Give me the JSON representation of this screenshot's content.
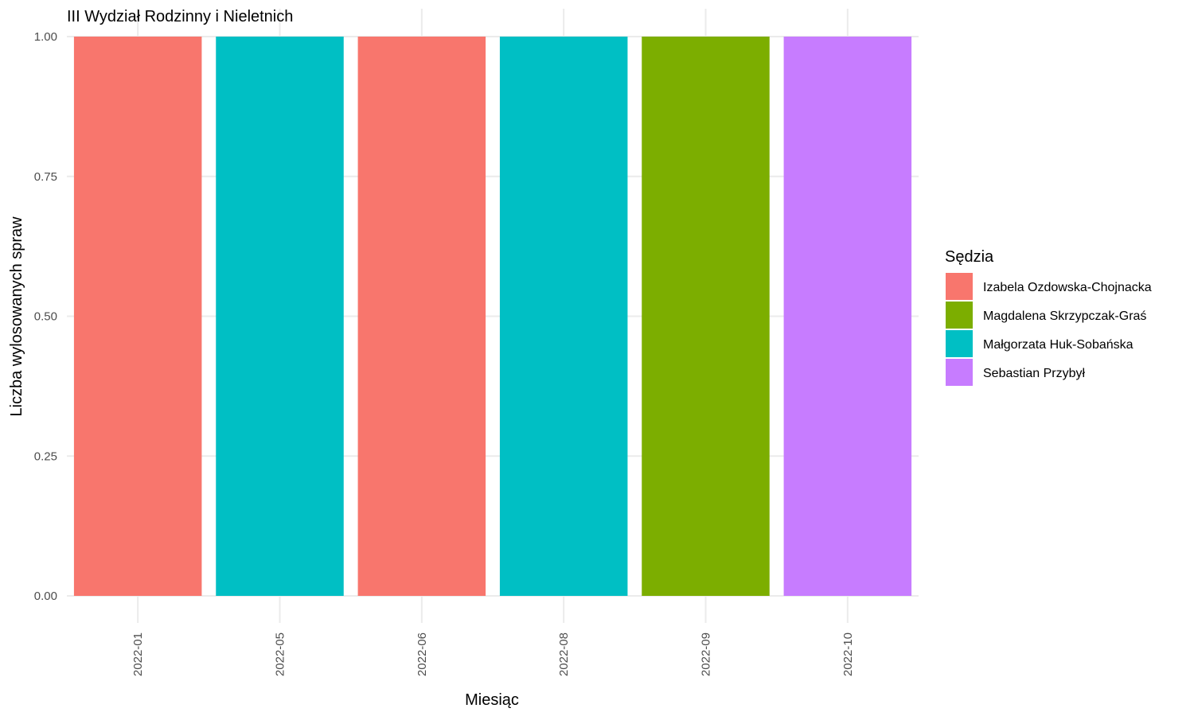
{
  "chart_data": {
    "type": "bar",
    "title": "III Wydział Rodzinny i Nieletnich",
    "xlabel": "Miesiąc",
    "ylabel": "Liczba wylosowanych spraw",
    "categories": [
      "2022-01",
      "2022-05",
      "2022-06",
      "2022-08",
      "2022-09",
      "2022-10"
    ],
    "values": [
      1,
      1,
      1,
      1,
      1,
      1
    ],
    "bar_judges": [
      "Izabela Ozdowska-Chojnacka",
      "Małgorzata Huk-Sobańska",
      "Izabela Ozdowska-Chojnacka",
      "Małgorzata Huk-Sobańska",
      "Magdalena Skrzypczak-Graś",
      "Sebastian Przybył"
    ],
    "ylim": [
      0,
      1
    ],
    "yticks": [
      0,
      0.25,
      0.5,
      0.75,
      1
    ],
    "ytick_labels": [
      "0.00",
      "0.25",
      "0.50",
      "0.75",
      "1.00"
    ],
    "grid": true,
    "legend": {
      "title": "Sędzia",
      "placement": "right",
      "entries": [
        {
          "name": "Izabela Ozdowska-Chojnacka",
          "color": "#F8766D"
        },
        {
          "name": "Magdalena Skrzypczak-Graś",
          "color": "#7CAE00"
        },
        {
          "name": "Małgorzata Huk-Sobańska",
          "color": "#00BFC4"
        },
        {
          "name": "Sebastian Przybył",
          "color": "#C77CFF"
        }
      ]
    }
  }
}
